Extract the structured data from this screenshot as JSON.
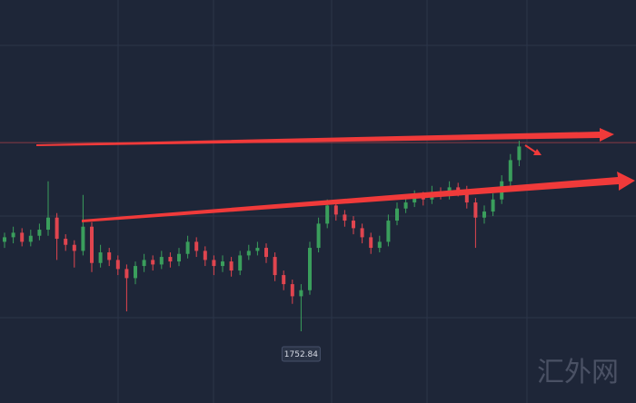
{
  "chart_data": {
    "type": "candlestick",
    "ylim": [
      1705.44,
      1971.84
    ],
    "up_color": "#3a9e5c",
    "down_color": "#e0454f",
    "open": [
      1812,
      1815,
      1818,
      1812,
      1816,
      1820,
      1828,
      1814,
      1810,
      1806,
      1822,
      1798,
      1805,
      1800,
      1794,
      1788,
      1796,
      1800,
      1797,
      1802,
      1799,
      1804,
      1812,
      1806,
      1800,
      1796,
      1799,
      1793,
      1803,
      1806,
      1808,
      1802,
      1790,
      1784,
      1776,
      1780,
      1808,
      1824,
      1836,
      1830,
      1826,
      1821,
      1815,
      1808,
      1812,
      1826,
      1834,
      1838,
      1842,
      1840,
      1845,
      1843,
      1848,
      1846,
      1838,
      1828,
      1832,
      1840,
      1852,
      1866
    ],
    "high": [
      1818,
      1822,
      1821,
      1820,
      1824,
      1852,
      1831,
      1817,
      1813,
      1843,
      1825,
      1810,
      1808,
      1803,
      1797,
      1799,
      1804,
      1803,
      1806,
      1805,
      1808,
      1816,
      1815,
      1809,
      1803,
      1803,
      1802,
      1806,
      1810,
      1812,
      1811,
      1805,
      1793,
      1787,
      1784,
      1812,
      1828,
      1840,
      1839,
      1833,
      1829,
      1824,
      1818,
      1816,
      1830,
      1838,
      1842,
      1846,
      1845,
      1849,
      1848,
      1852,
      1851,
      1849,
      1841,
      1836,
      1844,
      1856,
      1870,
      1878.8
    ],
    "low": [
      1808,
      1811,
      1809,
      1809,
      1813,
      1816,
      1800,
      1806,
      1795,
      1803,
      1792,
      1795,
      1796,
      1790,
      1766,
      1784,
      1792,
      1793,
      1794,
      1795,
      1796,
      1801,
      1802,
      1796,
      1790,
      1792,
      1789,
      1790,
      1800,
      1803,
      1798,
      1786,
      1780,
      1771,
      1752.84,
      1777,
      1805,
      1821,
      1826,
      1822,
      1817,
      1811,
      1804,
      1805,
      1809,
      1823,
      1831,
      1835,
      1836,
      1837,
      1840,
      1840,
      1842,
      1834,
      1808,
      1824,
      1829,
      1837,
      1849,
      1862
    ],
    "close": [
      1815,
      1818,
      1812,
      1816,
      1820,
      1828,
      1814,
      1810,
      1806,
      1822,
      1798,
      1805,
      1800,
      1794,
      1788,
      1796,
      1800,
      1797,
      1802,
      1799,
      1804,
      1812,
      1806,
      1800,
      1796,
      1799,
      1793,
      1803,
      1806,
      1808,
      1802,
      1790,
      1784,
      1776,
      1780,
      1808,
      1824,
      1836,
      1830,
      1826,
      1821,
      1815,
      1808,
      1812,
      1826,
      1834,
      1838,
      1842,
      1840,
      1845,
      1843,
      1848,
      1846,
      1838,
      1828,
      1832,
      1840,
      1852,
      1866,
      1875
    ],
    "price_line": 1877.6,
    "low_label_index": 34,
    "watermark": "汇外网"
  }
}
